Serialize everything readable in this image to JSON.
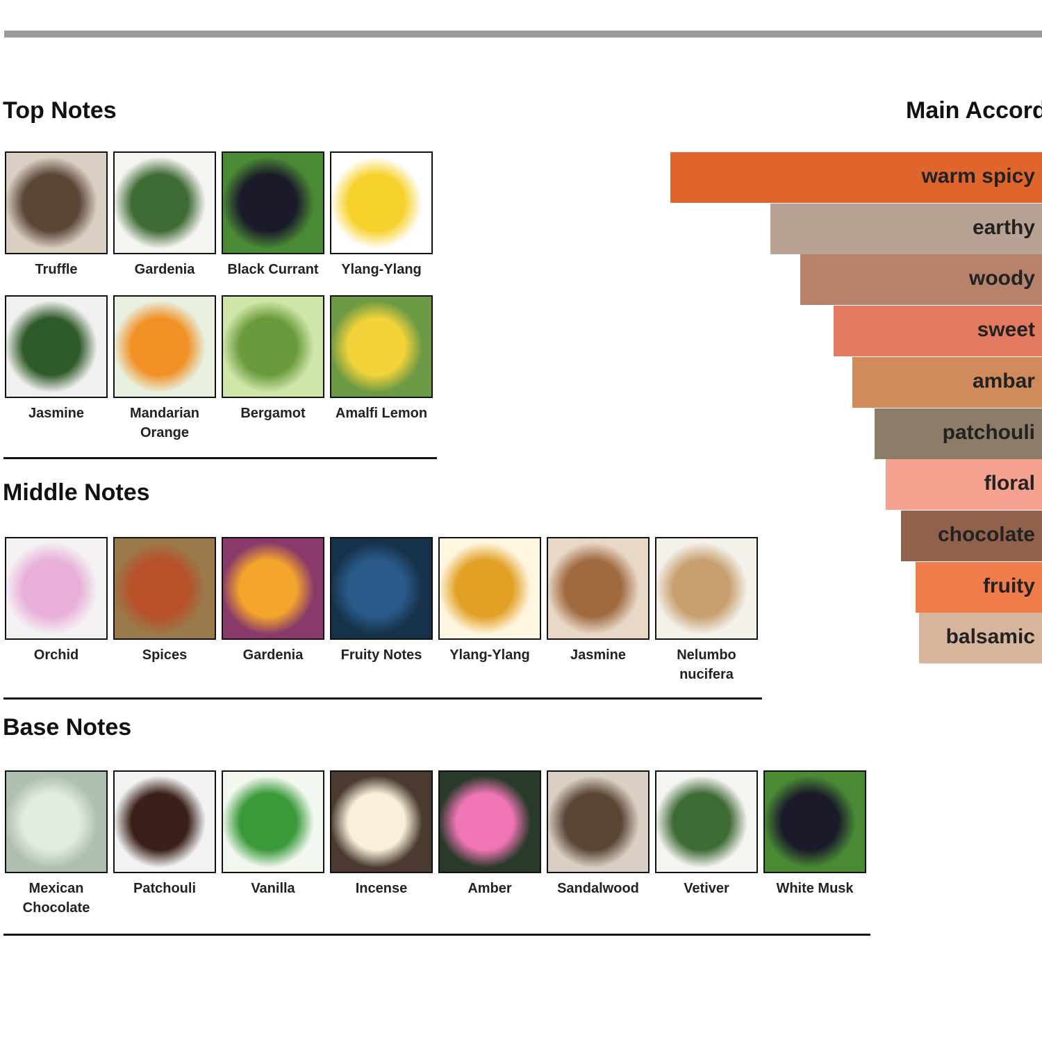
{
  "sections": [
    {
      "title": "Top Notes",
      "notes": [
        "Truffle",
        "Gardenia",
        "Black Currant",
        "Ylang-Ylang",
        "Jasmine",
        "Mandarian Orange",
        "Bergamot",
        "Amalfi Lemon"
      ]
    },
    {
      "title": "Middle Notes",
      "notes": [
        "Orchid",
        "Spices",
        "Gardenia",
        "Fruity Notes",
        "Ylang-Ylang",
        "Jasmine",
        "Nelumbo nucifera"
      ]
    },
    {
      "title": "Base Notes",
      "notes": [
        "Mexican Chocolate",
        "Patchouli",
        "Vanilla",
        "Incense",
        "Amber",
        "Sandalwood",
        "Vetiver",
        "White Musk"
      ]
    }
  ],
  "chart_data": {
    "type": "hbar",
    "title": "Main Accords",
    "categories": [
      "warm spicy",
      "earthy",
      "woody",
      "sweet",
      "ambar",
      "patchouli",
      "floral",
      "chocolate",
      "fruity",
      "balsamic"
    ],
    "values": [
      100,
      73,
      65,
      56,
      51,
      45,
      42,
      38,
      34,
      33
    ],
    "colors": [
      "#df652d",
      "#b9a294",
      "#b6836a",
      "#e37b60",
      "#d18a5b",
      "#8d7c68",
      "#f4a190",
      "#91614b",
      "#f07b4b",
      "#d7b59c"
    ],
    "xlim": [
      0,
      100
    ]
  }
}
